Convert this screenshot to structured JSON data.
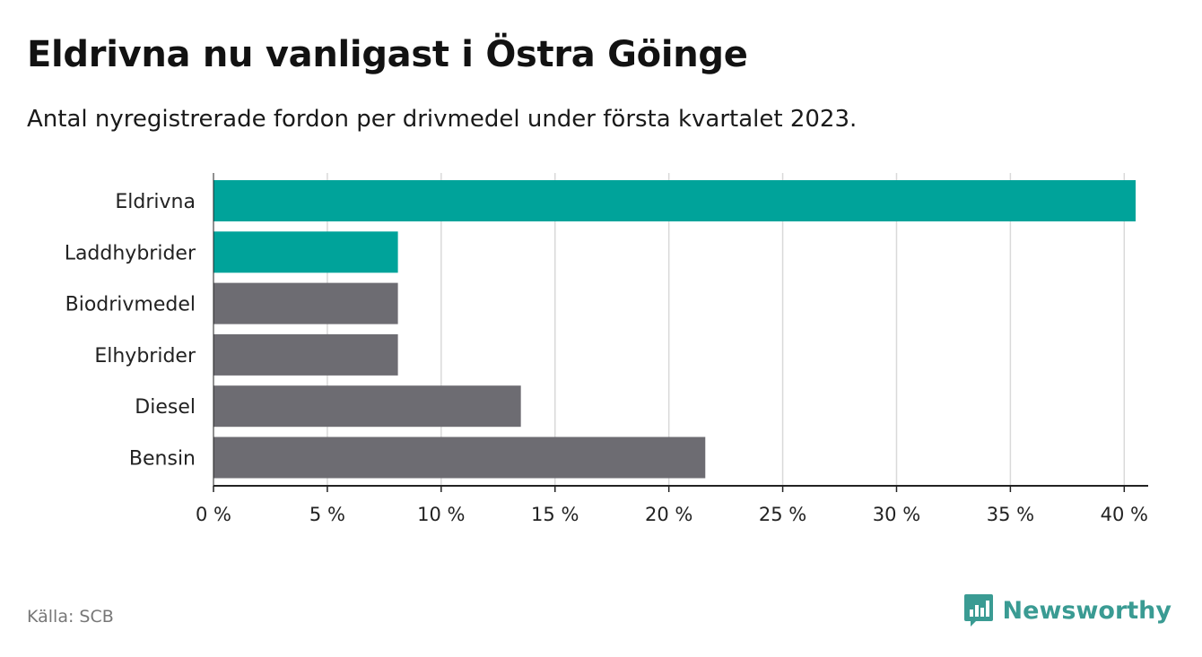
{
  "header": {
    "title": "Eldrivna nu vanligast i Östra Göinge",
    "subtitle": "Antal nyregistrerade fordon per drivmedel under första kvartalet 2023."
  },
  "footer": {
    "source": "Källa: SCB",
    "brand": "Newsworthy",
    "brand_icon": "bar-chart-icon"
  },
  "colors": {
    "highlight": "#00a39a",
    "default": "#6d6c72",
    "grid": "#d9d9d9",
    "brand": "#3a9b93"
  },
  "chart_data": {
    "type": "bar",
    "orientation": "horizontal",
    "categories": [
      "Eldrivna",
      "Laddhybrider",
      "Biodrivmedel",
      "Elhybrider",
      "Diesel",
      "Bensin"
    ],
    "values": [
      40.5,
      8.1,
      8.1,
      8.1,
      13.5,
      21.6
    ],
    "highlighted": [
      true,
      true,
      false,
      false,
      false,
      false
    ],
    "xlim": [
      0,
      40.5
    ],
    "xticks": [
      0,
      5,
      10,
      15,
      20,
      25,
      30,
      35,
      40
    ],
    "xtick_labels": [
      "0 %",
      "5 %",
      "10 %",
      "15 %",
      "20 %",
      "25 %",
      "30 %",
      "35 %",
      "40 %"
    ],
    "grid": true,
    "legend": "none"
  }
}
